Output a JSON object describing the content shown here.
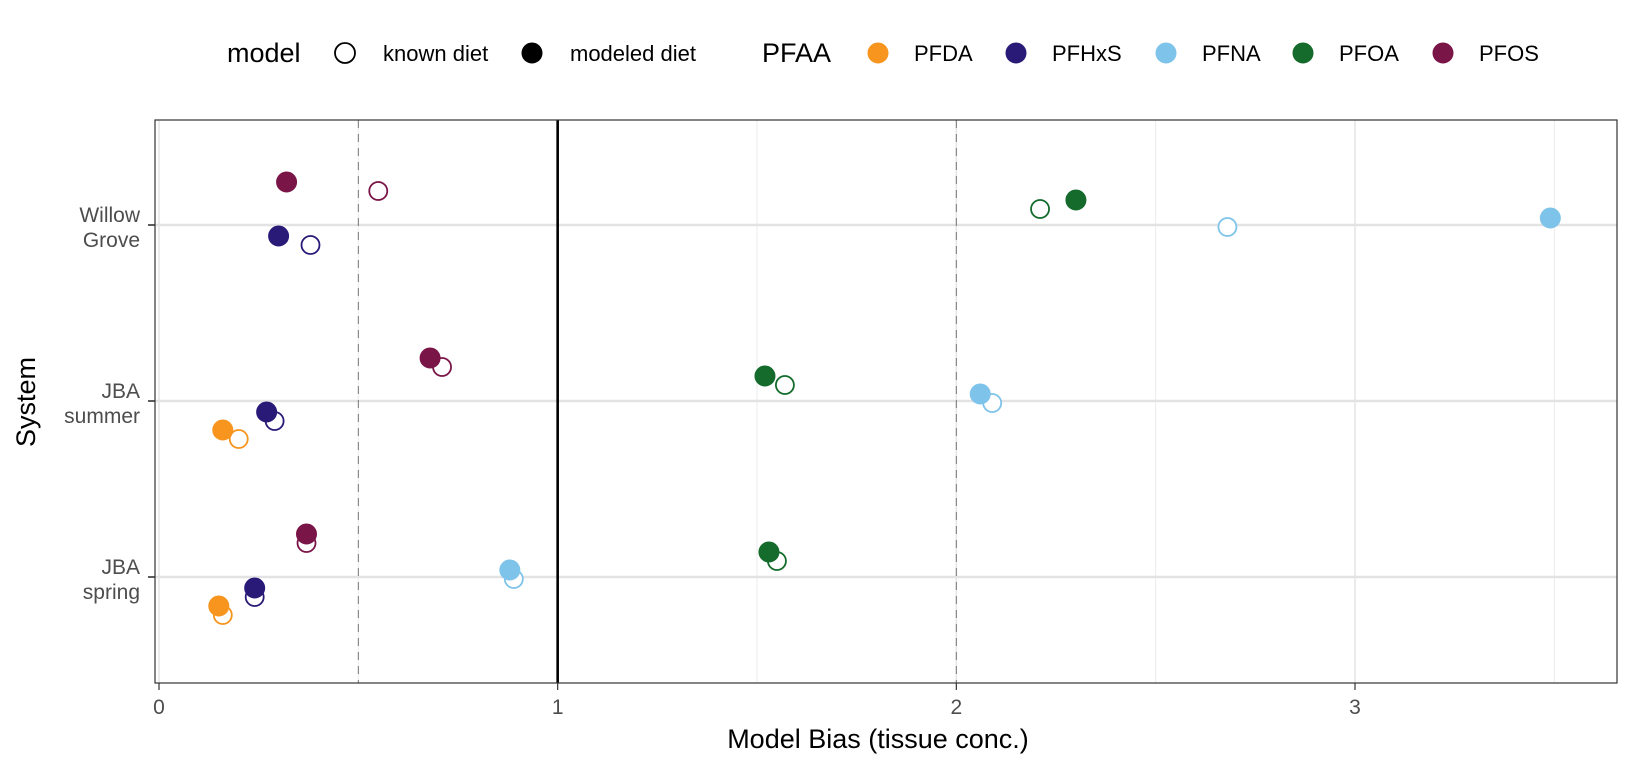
{
  "chart_data": {
    "type": "scatter",
    "xlabel": "Model Bias (tissue conc.)",
    "ylabel": "System",
    "xlim": [
      -0.01,
      3.67
    ],
    "x_ticks": [
      0,
      1,
      2,
      3
    ],
    "x_tick_labels": [
      "0",
      "1",
      "2",
      "3"
    ],
    "reference_lines": {
      "solid": 1,
      "dashed": [
        0.5,
        2
      ]
    },
    "grid": true,
    "legend_position": "top",
    "categories": [
      {
        "key": "willow",
        "lines": [
          "Willow",
          "Grove"
        ]
      },
      {
        "key": "jba_summer",
        "lines": [
          "JBA",
          "summer"
        ]
      },
      {
        "key": "jba_spring",
        "lines": [
          "JBA",
          "spring"
        ]
      }
    ],
    "legend": {
      "model_title": "model",
      "model_items": [
        {
          "label": "known diet",
          "style": "open"
        },
        {
          "label": "modeled diet",
          "style": "filled"
        }
      ],
      "pfaa_title": "PFAA",
      "pfaa_items": [
        {
          "label": "PFDA",
          "color": "#F7951E"
        },
        {
          "label": "PFHxS",
          "color": "#2A1A78"
        },
        {
          "label": "PFNA",
          "color": "#7EC3EA"
        },
        {
          "label": "PFOA",
          "color": "#146B2C"
        },
        {
          "label": "PFOS",
          "color": "#7A1548"
        }
      ]
    },
    "series": [
      {
        "system": "willow",
        "pfaa": "PFOS",
        "model": "modeled diet",
        "x": 0.32
      },
      {
        "system": "willow",
        "pfaa": "PFOS",
        "model": "known diet",
        "x": 0.55
      },
      {
        "system": "willow",
        "pfaa": "PFOA",
        "model": "modeled diet",
        "x": 2.3
      },
      {
        "system": "willow",
        "pfaa": "PFOA",
        "model": "known diet",
        "x": 2.21
      },
      {
        "system": "willow",
        "pfaa": "PFNA",
        "model": "modeled diet",
        "x": 3.49
      },
      {
        "system": "willow",
        "pfaa": "PFNA",
        "model": "known diet",
        "x": 2.68
      },
      {
        "system": "willow",
        "pfaa": "PFHxS",
        "model": "modeled diet",
        "x": 0.3
      },
      {
        "system": "willow",
        "pfaa": "PFHxS",
        "model": "known diet",
        "x": 0.38
      },
      {
        "system": "jba_summer",
        "pfaa": "PFOS",
        "model": "modeled diet",
        "x": 0.68
      },
      {
        "system": "jba_summer",
        "pfaa": "PFOS",
        "model": "known diet",
        "x": 0.71
      },
      {
        "system": "jba_summer",
        "pfaa": "PFOA",
        "model": "modeled diet",
        "x": 1.52
      },
      {
        "system": "jba_summer",
        "pfaa": "PFOA",
        "model": "known diet",
        "x": 1.57
      },
      {
        "system": "jba_summer",
        "pfaa": "PFNA",
        "model": "modeled diet",
        "x": 2.06
      },
      {
        "system": "jba_summer",
        "pfaa": "PFNA",
        "model": "known diet",
        "x": 2.09
      },
      {
        "system": "jba_summer",
        "pfaa": "PFHxS",
        "model": "modeled diet",
        "x": 0.27
      },
      {
        "system": "jba_summer",
        "pfaa": "PFHxS",
        "model": "known diet",
        "x": 0.29
      },
      {
        "system": "jba_summer",
        "pfaa": "PFDA",
        "model": "modeled diet",
        "x": 0.16
      },
      {
        "system": "jba_summer",
        "pfaa": "PFDA",
        "model": "known diet",
        "x": 0.2
      },
      {
        "system": "jba_spring",
        "pfaa": "PFOS",
        "model": "modeled diet",
        "x": 0.37
      },
      {
        "system": "jba_spring",
        "pfaa": "PFOS",
        "model": "known diet",
        "x": 0.37
      },
      {
        "system": "jba_spring",
        "pfaa": "PFOA",
        "model": "modeled diet",
        "x": 1.53
      },
      {
        "system": "jba_spring",
        "pfaa": "PFOA",
        "model": "known diet",
        "x": 1.55
      },
      {
        "system": "jba_spring",
        "pfaa": "PFNA",
        "model": "modeled diet",
        "x": 0.88
      },
      {
        "system": "jba_spring",
        "pfaa": "PFNA",
        "model": "known diet",
        "x": 0.89
      },
      {
        "system": "jba_spring",
        "pfaa": "PFHxS",
        "model": "modeled diet",
        "x": 0.24
      },
      {
        "system": "jba_spring",
        "pfaa": "PFHxS",
        "model": "known diet",
        "x": 0.24
      },
      {
        "system": "jba_spring",
        "pfaa": "PFDA",
        "model": "modeled diet",
        "x": 0.15
      },
      {
        "system": "jba_spring",
        "pfaa": "PFDA",
        "model": "known diet",
        "x": 0.16
      }
    ]
  }
}
